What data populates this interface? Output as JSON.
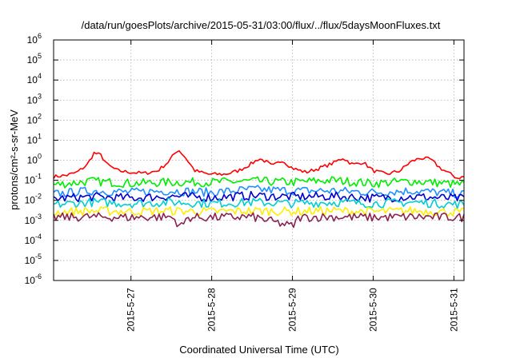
{
  "chart_data": {
    "type": "line",
    "title": "/data/run/goesPlots/archive/2015-05-31/03:00/flux/../flux/5daysMoonFluxes.txt",
    "xlabel": "Coordinated Universal Time (UTC)",
    "ylabel": "protons/cm²-s-sr-MeV",
    "yscale": "log",
    "ylim": [
      1e-06,
      1000000.0
    ],
    "y_ticks": [
      {
        "base": "10",
        "exp": "-6"
      },
      {
        "base": "10",
        "exp": "-5"
      },
      {
        "base": "10",
        "exp": "-4"
      },
      {
        "base": "10",
        "exp": "-3"
      },
      {
        "base": "10",
        "exp": "-2"
      },
      {
        "base": "10",
        "exp": "-1"
      },
      {
        "base": "10",
        "exp": "0"
      },
      {
        "base": "10",
        "exp": "1"
      },
      {
        "base": "10",
        "exp": "2"
      },
      {
        "base": "10",
        "exp": "3"
      },
      {
        "base": "10",
        "exp": "4"
      },
      {
        "base": "10",
        "exp": "5"
      },
      {
        "base": "10",
        "exp": "6"
      }
    ],
    "x_range": [
      "2015-05-26T01:00",
      "2015-05-31T03:00"
    ],
    "x_ticks": [
      "2015-5-27",
      "2015-5-28",
      "2015-5-29",
      "2015-5-30",
      "2015-5-31"
    ],
    "x_tick_times": [
      "2015-05-27T00:00",
      "2015-05-28T00:00",
      "2015-05-29T00:00",
      "2015-05-30T00:00",
      "2015-05-31T00:00"
    ],
    "grid": true,
    "legend": "none",
    "series": [
      {
        "color": "#ff0000",
        "points": [
          [
            "2015-05-26T01:00",
            0.15
          ],
          [
            "2015-05-26T05:00",
            0.18
          ],
          [
            "2015-05-26T08:00",
            0.25
          ],
          [
            "2015-05-26T11:00",
            0.6
          ],
          [
            "2015-05-26T13:00",
            2.3
          ],
          [
            "2015-05-26T15:00",
            1.8
          ],
          [
            "2015-05-26T17:00",
            0.6
          ],
          [
            "2015-05-26T20:00",
            0.3
          ],
          [
            "2015-05-27T00:00",
            0.25
          ],
          [
            "2015-05-27T04:00",
            0.22
          ],
          [
            "2015-05-27T08:00",
            0.3
          ],
          [
            "2015-05-27T11:00",
            0.8
          ],
          [
            "2015-05-27T14:00",
            3.5
          ],
          [
            "2015-05-27T16:00",
            1.5
          ],
          [
            "2015-05-27T19:00",
            0.3
          ],
          [
            "2015-05-27T23:00",
            0.2
          ],
          [
            "2015-05-28T04:00",
            0.2
          ],
          [
            "2015-05-28T08:00",
            0.3
          ],
          [
            "2015-05-28T12:00",
            0.7
          ],
          [
            "2015-05-28T14:00",
            1.2
          ],
          [
            "2015-05-28T16:00",
            0.9
          ],
          [
            "2015-05-28T18:00",
            0.5
          ],
          [
            "2015-05-28T21:00",
            1.0
          ],
          [
            "2015-05-29T00:00",
            0.4
          ],
          [
            "2015-05-29T04:00",
            0.25
          ],
          [
            "2015-05-29T08:00",
            0.4
          ],
          [
            "2015-05-29T12:00",
            0.7
          ],
          [
            "2015-05-29T15:00",
            1.3
          ],
          [
            "2015-05-29T18:00",
            0.6
          ],
          [
            "2015-05-29T21:00",
            0.8
          ],
          [
            "2015-05-30T00:00",
            0.3
          ],
          [
            "2015-05-30T04:00",
            0.2
          ],
          [
            "2015-05-30T08:00",
            0.3
          ],
          [
            "2015-05-30T11:00",
            0.8
          ],
          [
            "2015-05-30T14:00",
            1.3
          ],
          [
            "2015-05-30T17:00",
            1.1
          ],
          [
            "2015-05-30T20:00",
            0.4
          ],
          [
            "2015-05-30T23:00",
            0.2
          ],
          [
            "2015-05-31T01:00",
            0.13
          ],
          [
            "2015-05-31T03:00",
            0.15
          ]
        ]
      },
      {
        "color": "#00ee00",
        "points": [
          [
            "2015-05-26T01:00",
            0.06
          ],
          [
            "2015-05-26T12:00",
            0.09
          ],
          [
            "2015-05-27T00:00",
            0.07
          ],
          [
            "2015-05-27T12:00",
            0.08
          ],
          [
            "2015-05-28T00:00",
            0.08
          ],
          [
            "2015-05-28T12:00",
            0.09
          ],
          [
            "2015-05-29T00:00",
            0.08
          ],
          [
            "2015-05-29T12:00",
            0.1
          ],
          [
            "2015-05-30T00:00",
            0.07
          ],
          [
            "2015-05-30T12:00",
            0.09
          ],
          [
            "2015-05-31T03:00",
            0.06
          ]
        ]
      },
      {
        "color": "#1e90ff",
        "points": [
          [
            "2015-05-26T01:00",
            0.02
          ],
          [
            "2015-05-26T12:00",
            0.03
          ],
          [
            "2015-05-27T00:00",
            0.025
          ],
          [
            "2015-05-27T12:00",
            0.03
          ],
          [
            "2015-05-28T00:00",
            0.025
          ],
          [
            "2015-05-28T12:00",
            0.035
          ],
          [
            "2015-05-29T00:00",
            0.03
          ],
          [
            "2015-05-29T12:00",
            0.03
          ],
          [
            "2015-05-30T00:00",
            0.025
          ],
          [
            "2015-05-30T12:00",
            0.03
          ],
          [
            "2015-05-31T03:00",
            0.02
          ]
        ]
      },
      {
        "color": "#0000cd",
        "points": [
          [
            "2015-05-26T01:00",
            0.012
          ],
          [
            "2015-05-26T12:00",
            0.015
          ],
          [
            "2015-05-27T00:00",
            0.013
          ],
          [
            "2015-05-27T12:00",
            0.016
          ],
          [
            "2015-05-28T00:00",
            0.014
          ],
          [
            "2015-05-28T12:00",
            0.017
          ],
          [
            "2015-05-29T00:00",
            0.015
          ],
          [
            "2015-05-29T12:00",
            0.016
          ],
          [
            "2015-05-30T00:00",
            0.013
          ],
          [
            "2015-05-30T12:00",
            0.015
          ],
          [
            "2015-05-31T03:00",
            0.012
          ]
        ]
      },
      {
        "color": "#00ced1",
        "points": [
          [
            "2015-05-26T01:00",
            0.006
          ],
          [
            "2015-05-26T12:00",
            0.008
          ],
          [
            "2015-05-27T00:00",
            0.007
          ],
          [
            "2015-05-27T12:00",
            0.008
          ],
          [
            "2015-05-28T00:00",
            0.007
          ],
          [
            "2015-05-28T12:00",
            0.008
          ],
          [
            "2015-05-29T00:00",
            0.007
          ],
          [
            "2015-05-29T12:00",
            0.008
          ],
          [
            "2015-05-30T00:00",
            0.007
          ],
          [
            "2015-05-30T12:00",
            0.008
          ],
          [
            "2015-05-31T03:00",
            0.006
          ]
        ]
      },
      {
        "color": "#ffee00",
        "points": [
          [
            "2015-05-26T01:00",
            0.0025
          ],
          [
            "2015-05-26T12:00",
            0.003
          ],
          [
            "2015-05-27T00:00",
            0.0028
          ],
          [
            "2015-05-27T12:00",
            0.003
          ],
          [
            "2015-05-28T00:00",
            0.0027
          ],
          [
            "2015-05-28T12:00",
            0.003
          ],
          [
            "2015-05-29T00:00",
            0.0028
          ],
          [
            "2015-05-29T12:00",
            0.003
          ],
          [
            "2015-05-30T00:00",
            0.0027
          ],
          [
            "2015-05-30T12:00",
            0.003
          ],
          [
            "2015-05-31T03:00",
            0.0025
          ]
        ]
      },
      {
        "color": "#8b2252",
        "points": [
          [
            "2015-05-26T01:00",
            0.0014
          ],
          [
            "2015-05-26T12:00",
            0.0015
          ],
          [
            "2015-05-27T00:00",
            0.0014
          ],
          [
            "2015-05-27T12:00",
            0.0015
          ],
          [
            "2015-05-27T15:00",
            0.0005
          ],
          [
            "2015-05-27T17:00",
            0.0014
          ],
          [
            "2015-05-28T00:00",
            0.0014
          ],
          [
            "2015-05-28T12:00",
            0.0015
          ],
          [
            "2015-05-29T00:00",
            0.0005
          ],
          [
            "2015-05-29T02:00",
            0.0014
          ],
          [
            "2015-05-29T12:00",
            0.0015
          ],
          [
            "2015-05-30T00:00",
            0.0014
          ],
          [
            "2015-05-30T12:00",
            0.0015
          ],
          [
            "2015-05-31T03:00",
            0.0014
          ]
        ]
      }
    ]
  }
}
